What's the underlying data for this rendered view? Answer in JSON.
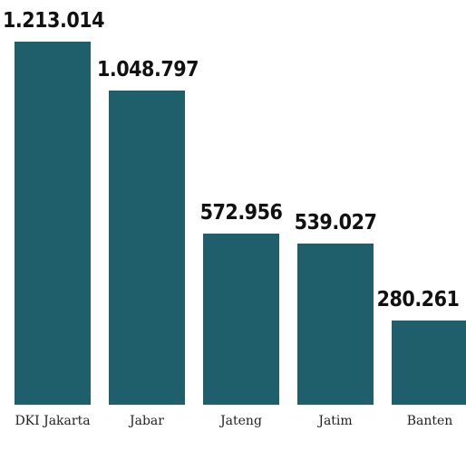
{
  "chart_data": {
    "type": "bar",
    "categories": [
      "DKI Jakarta",
      "Jabar",
      "Jateng",
      "Jatim",
      "Banten"
    ],
    "values": [
      1213014,
      1048797,
      572956,
      539027,
      280261
    ],
    "value_labels": [
      "1.213.014",
      "1.048.797",
      "572.956",
      "539.027",
      "280.261"
    ],
    "color": "#1f5f6b"
  }
}
